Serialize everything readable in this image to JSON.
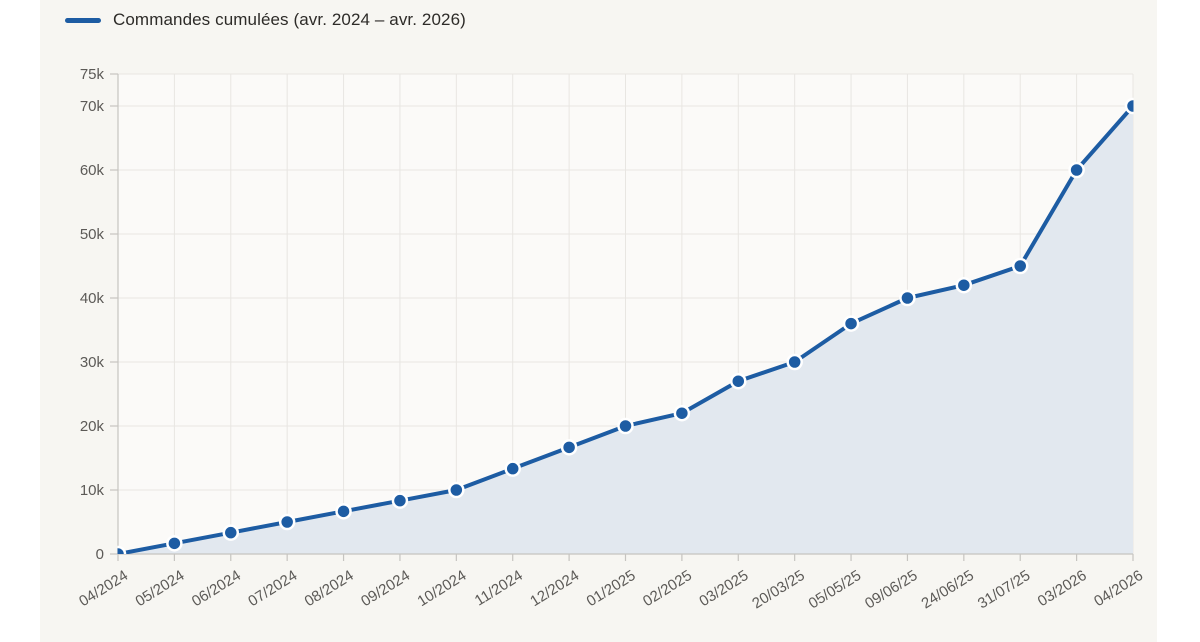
{
  "page": {
    "background": "#ffffff",
    "content_background": "#f7f6f2"
  },
  "legend": {
    "position": "top-left"
  },
  "chart_data": {
    "type": "line",
    "title": "",
    "categories": [
      "04/2024",
      "05/2024",
      "06/2024",
      "07/2024",
      "08/2024",
      "09/2024",
      "10/2024",
      "11/2024",
      "12/2024",
      "01/2025",
      "02/2025",
      "03/2025",
      "20/03/25",
      "05/05/25",
      "09/06/25",
      "24/06/25",
      "31/07/25",
      "03/2026",
      "04/2026"
    ],
    "series": [
      {
        "name": "Commandes cumulées (avr. 2024 – avr. 2026)",
        "values": [
          0,
          1667,
          3333,
          5000,
          6667,
          8333,
          10000,
          13333,
          16667,
          20000,
          22000,
          27000,
          30000,
          36000,
          40000,
          42000,
          45000,
          60000,
          70000
        ]
      }
    ],
    "xlabel": "",
    "ylabel": "",
    "ylim": [
      0,
      75000
    ],
    "yticks": [
      {
        "value": 0,
        "label": "0"
      },
      {
        "value": 10000,
        "label": "10k"
      },
      {
        "value": 20000,
        "label": "20k"
      },
      {
        "value": 30000,
        "label": "30k"
      },
      {
        "value": 40000,
        "label": "40k"
      },
      {
        "value": 50000,
        "label": "50k"
      },
      {
        "value": 60000,
        "label": "60k"
      },
      {
        "value": 70000,
        "label": "70k"
      },
      {
        "value": 75000,
        "label": "75k"
      }
    ],
    "grid": true,
    "legend_position": "top-left",
    "marker": "circle",
    "area_filled": true,
    "colors": {
      "line": "#1d5ca3",
      "marker_fill": "#1d5ca3",
      "marker_stroke": "#ffffff",
      "area_fill": "#e2e8ef",
      "plot_background": "#fbfaf8",
      "gridline": "#e8e6e2",
      "axis_line": "#c6c4c0",
      "tick_text": "#5c5a57",
      "legend_text": "#2d2b28"
    }
  }
}
